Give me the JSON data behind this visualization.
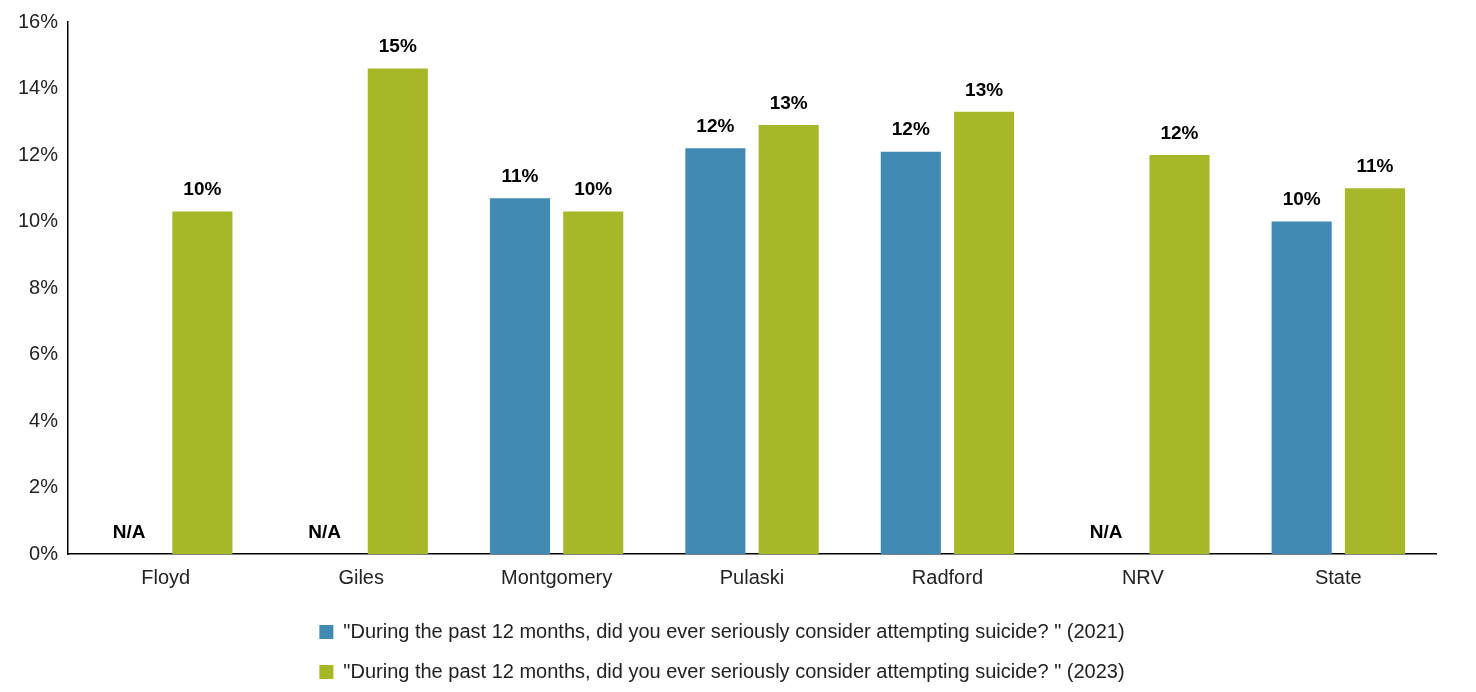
{
  "chart_data": {
    "type": "bar",
    "categories": [
      "Floyd",
      "Giles",
      "Montgomery",
      "Pulaski",
      "Radford",
      "NRV",
      "State"
    ],
    "series": [
      {
        "name": "\"During the past 12 months, did you ever seriously consider attempting suicide? \" (2021)",
        "color": "#418ab3",
        "values": [
          null,
          null,
          10.7,
          12.2,
          12.1,
          null,
          10.0
        ],
        "value_labels": [
          "N/A",
          "N/A",
          "11%",
          "12%",
          "12%",
          "N/A",
          "10%"
        ]
      },
      {
        "name": "\"During the past 12 months, did you ever seriously consider attempting suicide? \" (2023)",
        "color": "#a6b727",
        "values": [
          10.3,
          14.6,
          10.3,
          12.9,
          13.3,
          12.0,
          11.0
        ],
        "value_labels": [
          "10%",
          "15%",
          "10%",
          "13%",
          "13%",
          "12%",
          "11%"
        ]
      }
    ],
    "ylim": [
      0,
      16
    ],
    "yticks": [
      {
        "value": 0,
        "label": "0%"
      },
      {
        "value": 2,
        "label": "2%"
      },
      {
        "value": 4,
        "label": "4%"
      },
      {
        "value": 6,
        "label": "6%"
      },
      {
        "value": 8,
        "label": "8%"
      },
      {
        "value": 10,
        "label": "10%"
      },
      {
        "value": 12,
        "label": "12%"
      },
      {
        "value": 14,
        "label": "14%"
      },
      {
        "value": 16,
        "label": "16%"
      }
    ],
    "grid": false,
    "legend": "bottom"
  }
}
